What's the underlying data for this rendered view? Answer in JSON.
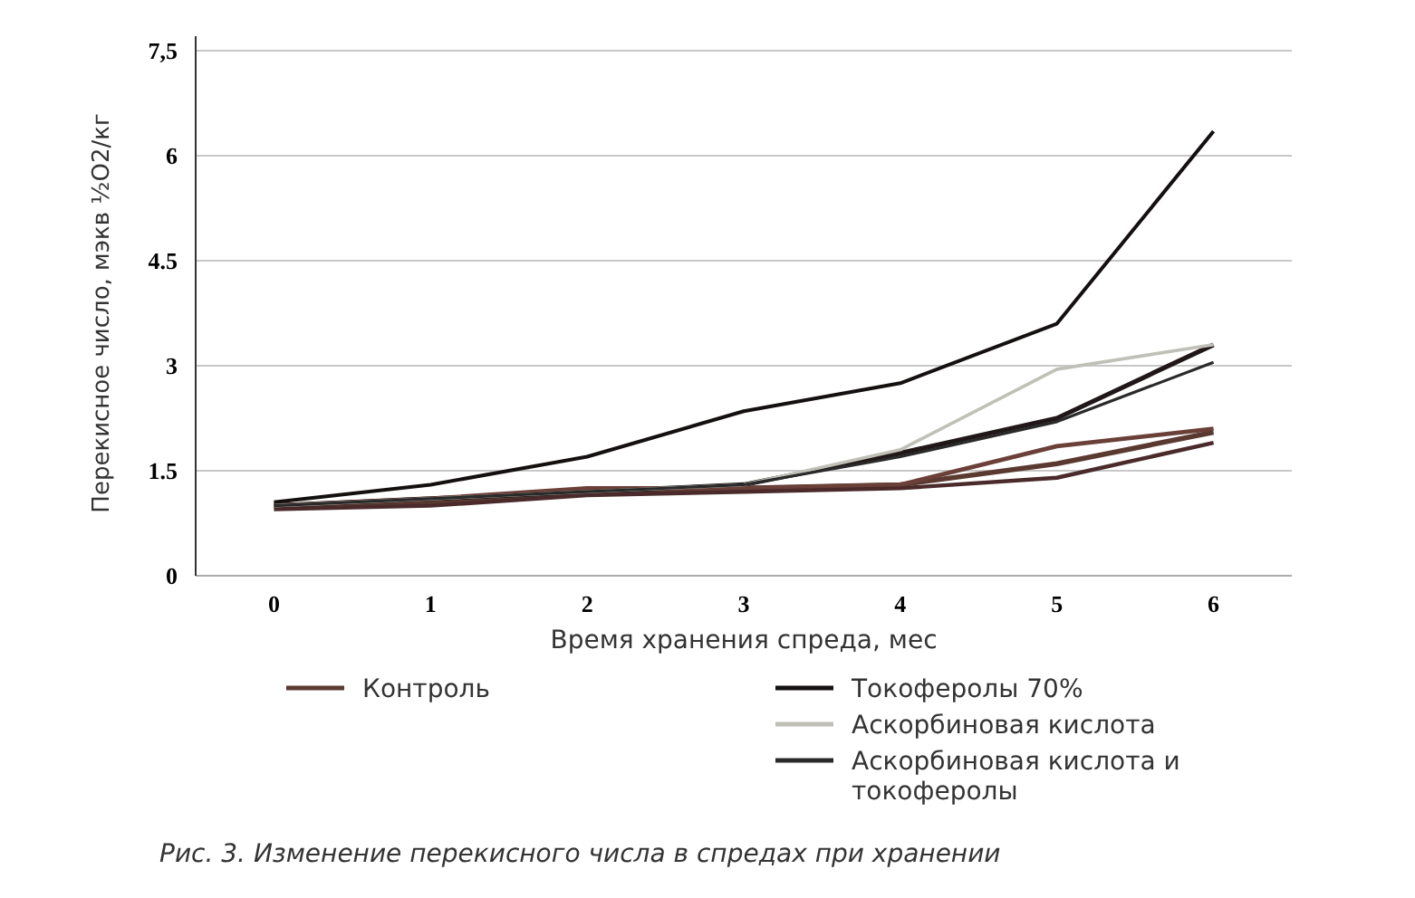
{
  "chart_data": {
    "type": "line",
    "xlabel": "Время хранения спреда, мес",
    "ylabel": "Перекисное число, мэкв ½O2/кг",
    "x": [
      0,
      1,
      2,
      3,
      4,
      5,
      6
    ],
    "xlim": [
      -0.5,
      6.5
    ],
    "xticks": [
      0,
      1,
      2,
      3,
      4,
      5,
      6
    ],
    "ylim": [
      0,
      7.5
    ],
    "yticks": [
      0,
      1.5,
      3,
      4.5,
      6,
      {
        "value": 7.5,
        "label": "7,5"
      }
    ],
    "grid": "y",
    "legend": "bottom",
    "marker": "none",
    "line_style": "solid",
    "series": [
      {
        "name": "Контроль",
        "color": "#5a3a30",
        "values": [
          1.0,
          1.05,
          1.2,
          1.25,
          1.3,
          1.6,
          2.05
        ]
      },
      {
        "color": "#201818",
        "values": [
          1.0,
          1.1,
          1.2,
          1.3,
          1.75,
          2.25,
          3.3
        ]
      },
      {
        "color": "#6a4038",
        "values": [
          1.0,
          1.1,
          1.25,
          1.25,
          1.3,
          1.85,
          2.1
        ]
      },
      {
        "color": "#4a2a2a",
        "values": [
          0.95,
          1.0,
          1.15,
          1.2,
          1.25,
          1.4,
          1.9
        ]
      },
      {
        "name": "Токоферолы 70%",
        "color": "#151010",
        "values": [
          1.05,
          1.3,
          1.7,
          2.35,
          2.75,
          3.6,
          6.35
        ]
      },
      {
        "name": "Аскорбиновая кислота",
        "color": "#c0c0b8",
        "values": [
          1.0,
          1.1,
          1.2,
          1.3,
          1.8,
          2.95,
          3.3
        ]
      },
      {
        "name": "Аскорбиновая кислота и токоферолы",
        "color": "#2a2a2a",
        "values": [
          1.0,
          1.1,
          1.2,
          1.3,
          1.7,
          2.2,
          3.05
        ]
      }
    ],
    "annotations": [
      "Рис. 3. Изменение перекисного числа в спредах при хранении"
    ]
  }
}
